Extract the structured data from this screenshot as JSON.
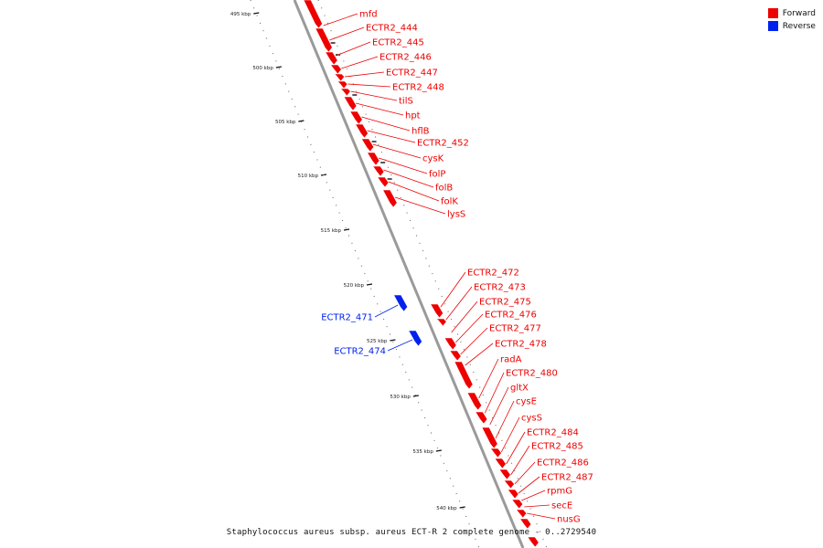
{
  "legend": [
    {
      "label": "Forward",
      "color": "#ee0000"
    },
    {
      "label": "Reverse",
      "color": "#0022ee"
    }
  ],
  "caption": "Staphylococcus aureus subsp. aureus ECT-R 2 complete genome - 0..2729540",
  "colors": {
    "forward": "#ee0000",
    "reverse": "#0022ee",
    "backbone": "#9a9a9a"
  },
  "ticks": [
    "495 kbp",
    "500 kbp",
    "505 kbp",
    "510 kbp",
    "515 kbp",
    "520 kbp",
    "525 kbp",
    "530 kbp",
    "535 kbp",
    "540 kbp"
  ],
  "genes_forward_upper": [
    "mfd",
    "ECTR2_444",
    "ECTR2_445",
    "ECTR2_446",
    "ECTR2_447",
    "ECTR2_448",
    "tilS",
    "hpt",
    "hflB",
    "ECTR2_452",
    "cysK",
    "folP",
    "folB",
    "folK",
    "lysS"
  ],
  "genes_forward_lower": [
    "ECTR2_472",
    "ECTR2_473",
    "ECTR2_475",
    "ECTR2_476",
    "ECTR2_477",
    "ECTR2_478",
    "radA",
    "ECTR2_480",
    "gltX",
    "cysE",
    "cysS",
    "ECTR2_484",
    "ECTR2_485",
    "ECTR2_486",
    "ECTR2_487",
    "rpmG",
    "secE",
    "nusG"
  ],
  "genes_reverse": [
    "ECTR2_471",
    "ECTR2_474"
  ]
}
